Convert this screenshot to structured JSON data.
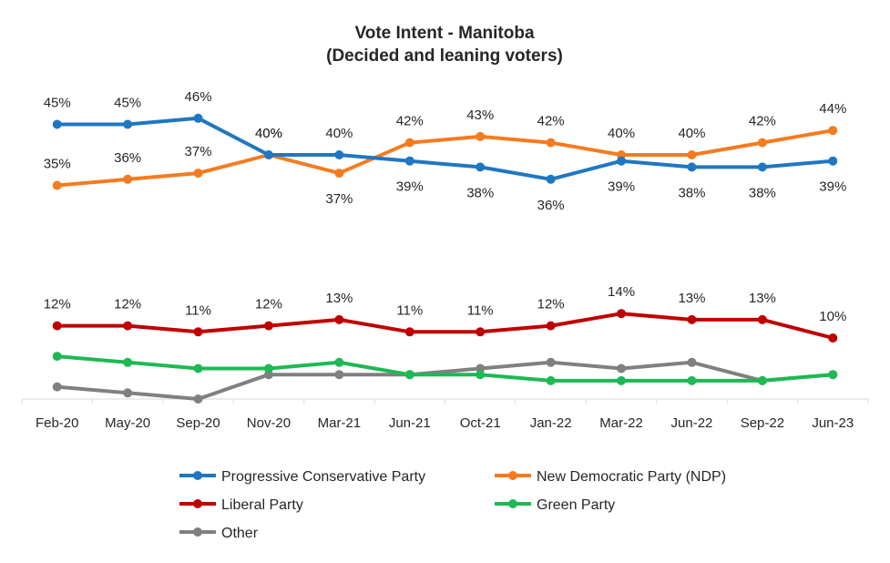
{
  "chart_data": {
    "type": "line",
    "title": "Vote Intent - Manitoba",
    "subtitle": "(Decided and leaning voters)",
    "xlabel": "",
    "ylabel": "",
    "ylim": [
      0,
      50
    ],
    "grid": false,
    "legend_position": "bottom",
    "categories": [
      "Feb-20",
      "May-20",
      "Sep-20",
      "Nov-20",
      "Mar-21",
      "Jun-21",
      "Oct-21",
      "Jan-22",
      "Mar-22",
      "Jun-22",
      "Sep-22",
      "Jun-23"
    ],
    "series": [
      {
        "name": "Progressive Conservative Party",
        "color": "#1f77c1",
        "values": [
          45,
          45,
          46,
          40,
          40,
          39,
          38,
          36,
          39,
          38,
          38,
          39
        ],
        "labels": [
          "45%",
          "45%",
          "46%",
          "40%",
          "40%",
          "39%",
          "38%",
          "36%",
          "39%",
          "38%",
          "38%",
          "39%"
        ],
        "label_side": [
          "above",
          "above",
          "above",
          "above",
          "above",
          "below",
          "below",
          "below",
          "below",
          "below",
          "below",
          "below"
        ]
      },
      {
        "name": "New Democratic Party (NDP)",
        "color": "#f47b20",
        "values": [
          35,
          36,
          37,
          40,
          37,
          42,
          43,
          42,
          40,
          40,
          42,
          44
        ],
        "labels": [
          "35%",
          "36%",
          "37%",
          "40%",
          "37%",
          "42%",
          "43%",
          "42%",
          "40%",
          "40%",
          "42%",
          "44%"
        ],
        "label_side": [
          "above",
          "above",
          "above",
          "above",
          "below",
          "above",
          "above",
          "above",
          "above",
          "above",
          "above",
          "above"
        ]
      },
      {
        "name": "Liberal Party",
        "color": "#c00000",
        "values": [
          12,
          12,
          11,
          12,
          13,
          11,
          11,
          12,
          14,
          13,
          13,
          10
        ],
        "labels": [
          "12%",
          "12%",
          "11%",
          "12%",
          "13%",
          "11%",
          "11%",
          "12%",
          "14%",
          "13%",
          "13%",
          "10%"
        ],
        "label_side": [
          "above",
          "above",
          "above",
          "above",
          "above",
          "above",
          "above",
          "above",
          "above",
          "above",
          "above",
          "above"
        ]
      },
      {
        "name": "Green Party",
        "color": "#1db954",
        "values": [
          7,
          6,
          5,
          5,
          6,
          4,
          4,
          3,
          3,
          3,
          3,
          4
        ],
        "labels": [],
        "label_side": []
      },
      {
        "name": "Other",
        "color": "#808080",
        "values": [
          2,
          1,
          0,
          4,
          4,
          4,
          5,
          6,
          5,
          6,
          3,
          4
        ],
        "labels": [],
        "label_side": []
      }
    ]
  }
}
